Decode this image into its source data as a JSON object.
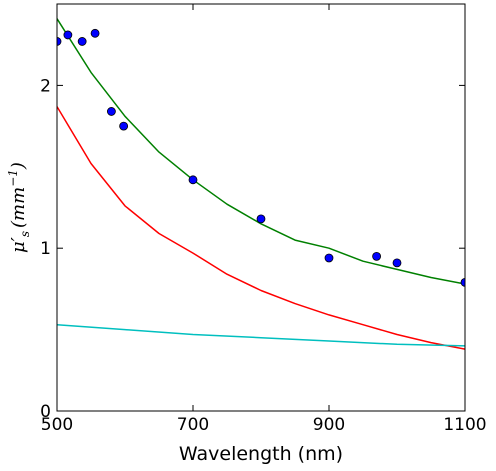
{
  "chart_data": {
    "type": "scatter",
    "title": "",
    "xlabel": "Wavelength (nm)",
    "ylabel_main": "μ",
    "ylabel_sub": "s",
    "ylabel_prime": "′",
    "ylabel_units": "(mm",
    "ylabel_exp": "−1",
    "ylabel_close": ")",
    "xlim": [
      500,
      1100
    ],
    "ylim": [
      0,
      2.5
    ],
    "x_ticks": [
      500,
      700,
      900,
      1100
    ],
    "y_ticks": [
      0,
      1,
      2
    ],
    "grid": false,
    "series": [
      {
        "kind": "scatter",
        "color": "#0000ff",
        "x": [
          500,
          516,
          537,
          556,
          580,
          598,
          700,
          800,
          900,
          970,
          1000,
          1100
        ],
        "y": [
          2.27,
          2.31,
          2.27,
          2.32,
          1.84,
          1.75,
          1.42,
          1.18,
          0.94,
          0.95,
          0.91,
          0.79
        ]
      },
      {
        "kind": "line",
        "color": "#008000",
        "x": [
          500,
          550,
          600,
          650,
          700,
          750,
          800,
          850,
          900,
          950,
          1000,
          1050,
          1100
        ],
        "y": [
          2.41,
          2.08,
          1.81,
          1.59,
          1.42,
          1.27,
          1.15,
          1.05,
          1.0,
          0.92,
          0.87,
          0.82,
          0.78
        ]
      },
      {
        "kind": "line",
        "color": "#ff0000",
        "x": [
          500,
          550,
          600,
          650,
          700,
          750,
          800,
          850,
          900,
          950,
          1000,
          1050,
          1100
        ],
        "y": [
          1.87,
          1.52,
          1.26,
          1.09,
          0.97,
          0.84,
          0.74,
          0.66,
          0.59,
          0.53,
          0.47,
          0.42,
          0.38
        ]
      },
      {
        "kind": "line",
        "color": "#00bfbf",
        "x": [
          500,
          600,
          700,
          800,
          900,
          1000,
          1100
        ],
        "y": [
          0.53,
          0.5,
          0.47,
          0.45,
          0.43,
          0.41,
          0.4
        ]
      }
    ]
  }
}
